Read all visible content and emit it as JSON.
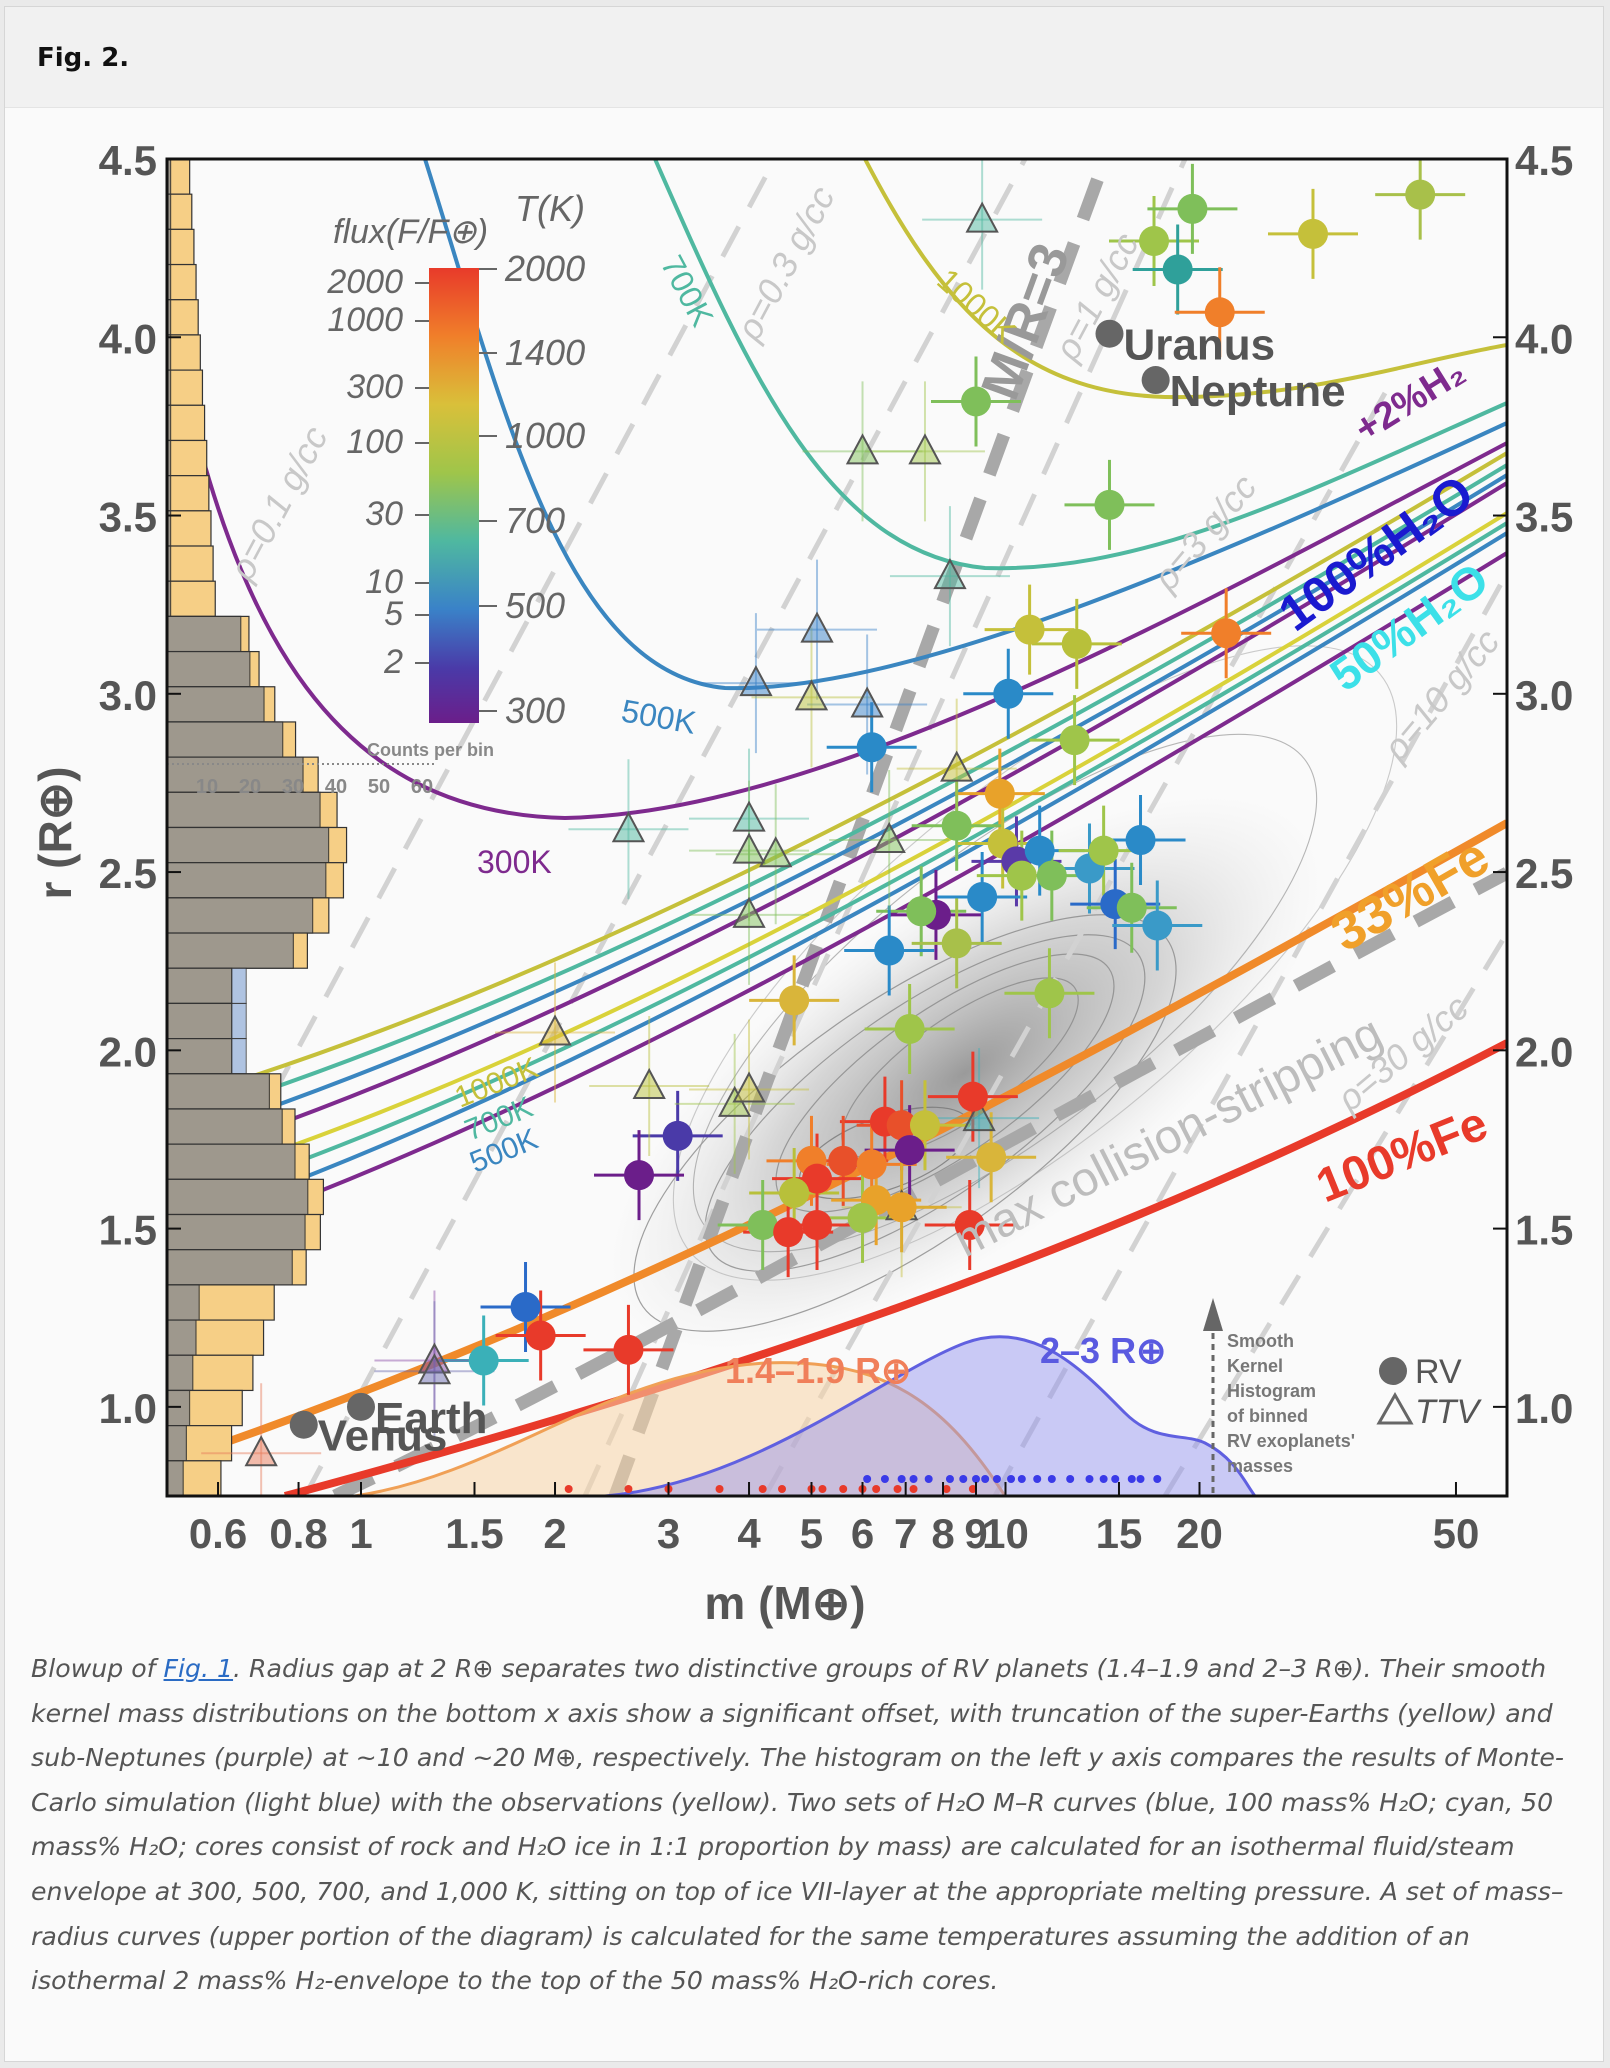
{
  "figure": {
    "label": "Fig. 2."
  },
  "caption": {
    "prefix": "Blowup of ",
    "link": "Fig. 1",
    "text": ". Radius gap at 2 R⊕ separates two distinctive groups of RV planets (1.4–1.9 and 2–3 R⊕). Their smooth kernel mass distributions on the bottom x axis show a significant offset, with truncation of the super-Earths (yellow) and sub-Neptunes (purple) at ~10 and ~20 M⊕, respectively. The histogram on the left y axis compares the results of Monte-Carlo simulation (light blue) with the observations (yellow). Two sets of H₂O M–R curves (blue, 100 mass% H₂O; cyan, 50 mass% H₂O; cores consist of rock and H₂O ice in 1:1 proportion by mass) are calculated for an isothermal fluid/steam envelope at 300, 500, 700, and 1,000 K, sitting on top of ice VII-layer at the appropriate melting pressure. A set of mass–radius curves (upper portion of the diagram) is calculated for the same temperatures assuming the addition of an isothermal 2 mass% H₂-envelope to the top of the 50 mass% H₂O-rich cores."
  },
  "chart_data": {
    "type": "scatter",
    "xlabel": "m (M⊕)",
    "ylabel": "r (R⊕)",
    "x_scale": "log",
    "xlim": [
      0.5,
      60
    ],
    "ylim": [
      0.75,
      4.5
    ],
    "x_ticks": [
      "0.6",
      "0.8",
      "1",
      "1.5",
      "2",
      "3",
      "4",
      "5",
      "6",
      "7",
      "8",
      "9",
      "10",
      "15",
      "20",
      "50"
    ],
    "y_ticks": [
      "1.0",
      "1.5",
      "2.0",
      "2.5",
      "3.0",
      "3.5",
      "4.0",
      "4.5"
    ],
    "colorbar": {
      "flux_title": "flux(F/F⊕)",
      "temp_title": "T(K)",
      "flux_ticks": [
        "2000",
        "1000",
        "300",
        "100",
        "30",
        "10",
        "5",
        "2"
      ],
      "temp_ticks": [
        "2000",
        "1400",
        "1000",
        "700",
        "500",
        "300"
      ],
      "colors": [
        "#e83a2a",
        "#f07f2a",
        "#d9b53a",
        "#9fc54a",
        "#4fb8a0",
        "#3a82c8",
        "#4a3aa8",
        "#6b1e8a"
      ]
    },
    "histogram": {
      "axis_title": "Counts per bin",
      "axis_ticks": [
        "10",
        "20",
        "30",
        "40",
        "50",
        "60"
      ],
      "observed_color": "#f6cf86",
      "simulated_color": "#9db6dc",
      "overlap_color": "#8f8f8f"
    },
    "curve_labels": {
      "h2_envelope": "+2%H₂",
      "water100": "100%H₂O",
      "water50": "50%H₂O",
      "iron33": "33%Fe",
      "iron100": "100%Fe",
      "collision": "max collision-stripping",
      "mr": "M/R=3",
      "t300": "300K",
      "t500": "500K",
      "t700": "700K",
      "t1000": "1000K",
      "t500_low": "500K",
      "t700_low": "700K",
      "t1000_low": "1000K"
    },
    "density_labels": [
      "ρ=0.1 g/cc",
      "ρ=0.3 g/cc",
      "ρ=1 g/cc",
      "ρ=3 g/cc",
      "ρ=10 g/cc",
      "ρ=30 g/cc"
    ],
    "named_planets": [
      {
        "name": "Uranus",
        "m": 14.5,
        "r": 4.01
      },
      {
        "name": "Neptune",
        "m": 17.1,
        "r": 3.88
      },
      {
        "name": "Earth",
        "m": 1.0,
        "r": 1.0
      },
      {
        "name": "Venus",
        "m": 0.815,
        "r": 0.95
      }
    ],
    "legend": {
      "rv": "RV",
      "ttv": "TTV"
    },
    "kde": {
      "note": "Smooth Kernel Histogram of binned RV exoplanets' masses",
      "group_small": "1.4–1.9 R⊕",
      "group_large": "2–3 R⊕"
    },
    "rv_points": [
      {
        "m": 17.0,
        "r": 4.27,
        "c": "#9fc54a"
      },
      {
        "m": 19.5,
        "r": 4.36,
        "c": "#7fbf5a"
      },
      {
        "m": 18.5,
        "r": 4.19,
        "c": "#2fa09a"
      },
      {
        "m": 21.5,
        "r": 4.07,
        "c": "#f07f2a"
      },
      {
        "m": 30.0,
        "r": 4.29,
        "c": "#c5c03a"
      },
      {
        "m": 44.0,
        "r": 4.4,
        "c": "#a8c04a"
      },
      {
        "m": 9.0,
        "r": 3.82,
        "c": "#7fbf5a"
      },
      {
        "m": 14.5,
        "r": 3.53,
        "c": "#7fbf5a"
      },
      {
        "m": 22.0,
        "r": 3.17,
        "c": "#f07f2a"
      },
      {
        "m": 10.9,
        "r": 3.18,
        "c": "#c5c03a"
      },
      {
        "m": 12.9,
        "r": 3.14,
        "c": "#b8c03a"
      },
      {
        "m": 10.1,
        "r": 3.0,
        "c": "#2a8ac8"
      },
      {
        "m": 6.2,
        "r": 2.85,
        "c": "#2a8ac8"
      },
      {
        "m": 12.8,
        "r": 2.87,
        "c": "#9fc54a"
      },
      {
        "m": 9.8,
        "r": 2.72,
        "c": "#e8a22a"
      },
      {
        "m": 8.4,
        "r": 2.63,
        "c": "#7fbf5a"
      },
      {
        "m": 9.9,
        "r": 2.58,
        "c": "#c5c03a"
      },
      {
        "m": 10.4,
        "r": 2.53,
        "c": "#5a3aa8"
      },
      {
        "m": 11.3,
        "r": 2.56,
        "c": "#2a8ac8"
      },
      {
        "m": 9.2,
        "r": 2.43,
        "c": "#2a8ac8"
      },
      {
        "m": 10.6,
        "r": 2.49,
        "c": "#9fc54a"
      },
      {
        "m": 11.8,
        "r": 2.49,
        "c": "#7fbf5a"
      },
      {
        "m": 13.5,
        "r": 2.51,
        "c": "#3a9ac8"
      },
      {
        "m": 14.8,
        "r": 2.41,
        "c": "#2a6ac8"
      },
      {
        "m": 15.7,
        "r": 2.4,
        "c": "#7fbf5a"
      },
      {
        "m": 16.2,
        "r": 2.59,
        "c": "#2a8ac8"
      },
      {
        "m": 17.2,
        "r": 2.35,
        "c": "#3a9ac8"
      },
      {
        "m": 14.2,
        "r": 2.56,
        "c": "#9fc54a"
      },
      {
        "m": 7.8,
        "r": 2.38,
        "c": "#6b1e8a"
      },
      {
        "m": 7.4,
        "r": 2.39,
        "c": "#7fbf5a"
      },
      {
        "m": 8.4,
        "r": 2.3,
        "c": "#a8c04a"
      },
      {
        "m": 6.6,
        "r": 2.28,
        "c": "#2a8ac8"
      },
      {
        "m": 11.7,
        "r": 2.16,
        "c": "#9fc54a"
      },
      {
        "m": 4.7,
        "r": 2.14,
        "c": "#d9b53a"
      },
      {
        "m": 7.1,
        "r": 2.06,
        "c": "#9fc54a"
      },
      {
        "m": 8.9,
        "r": 1.87,
        "c": "#e83a2a"
      },
      {
        "m": 6.5,
        "r": 1.8,
        "c": "#e83a2a"
      },
      {
        "m": 6.9,
        "r": 1.79,
        "c": "#e8502a"
      },
      {
        "m": 7.5,
        "r": 1.79,
        "c": "#c5c03a"
      },
      {
        "m": 7.1,
        "r": 1.72,
        "c": "#6b1e8a"
      },
      {
        "m": 9.5,
        "r": 1.7,
        "c": "#d9b53a"
      },
      {
        "m": 3.1,
        "r": 1.76,
        "c": "#4a3aa8"
      },
      {
        "m": 2.7,
        "r": 1.65,
        "c": "#6b1e8a"
      },
      {
        "m": 5.0,
        "r": 1.69,
        "c": "#f07f2a"
      },
      {
        "m": 5.6,
        "r": 1.69,
        "c": "#e8502a"
      },
      {
        "m": 6.2,
        "r": 1.68,
        "c": "#f07f2a"
      },
      {
        "m": 5.1,
        "r": 1.64,
        "c": "#e83a2a"
      },
      {
        "m": 4.7,
        "r": 1.6,
        "c": "#b8c03a"
      },
      {
        "m": 6.3,
        "r": 1.58,
        "c": "#e8a22a"
      },
      {
        "m": 6.9,
        "r": 1.56,
        "c": "#e8a22a"
      },
      {
        "m": 4.2,
        "r": 1.51,
        "c": "#7fbf5a"
      },
      {
        "m": 4.6,
        "r": 1.49,
        "c": "#e83a2a"
      },
      {
        "m": 5.1,
        "r": 1.51,
        "c": "#e83a2a"
      },
      {
        "m": 6.0,
        "r": 1.53,
        "c": "#9fc54a"
      },
      {
        "m": 8.8,
        "r": 1.51,
        "c": "#e83a2a"
      },
      {
        "m": 1.8,
        "r": 1.28,
        "c": "#2a6ac8"
      },
      {
        "m": 1.9,
        "r": 1.2,
        "c": "#e83a2a"
      },
      {
        "m": 2.6,
        "r": 1.16,
        "c": "#e83a2a"
      },
      {
        "m": 1.55,
        "r": 1.13,
        "c": "#3ab0b8"
      }
    ],
    "ttv_points": [
      {
        "m": 9.2,
        "r": 4.33,
        "c": "#4fb8a0"
      },
      {
        "m": 6.0,
        "r": 3.68,
        "c": "#7fbf5a"
      },
      {
        "m": 7.5,
        "r": 3.68,
        "c": "#9fc54a"
      },
      {
        "m": 8.2,
        "r": 3.33,
        "c": "#4fb8a0"
      },
      {
        "m": 5.1,
        "r": 3.18,
        "c": "#3a82c8"
      },
      {
        "m": 4.1,
        "r": 3.03,
        "c": "#3a82c8"
      },
      {
        "m": 5.0,
        "r": 2.99,
        "c": "#b8c03a"
      },
      {
        "m": 6.1,
        "r": 2.97,
        "c": "#3a82c8"
      },
      {
        "m": 8.4,
        "r": 2.79,
        "c": "#c5c03a"
      },
      {
        "m": 2.6,
        "r": 2.62,
        "c": "#4fb8a0"
      },
      {
        "m": 4.0,
        "r": 2.65,
        "c": "#4fb8a0"
      },
      {
        "m": 4.0,
        "r": 2.56,
        "c": "#7fbf5a"
      },
      {
        "m": 4.4,
        "r": 2.55,
        "c": "#7fbf5a"
      },
      {
        "m": 6.6,
        "r": 2.59,
        "c": "#7fbf5a"
      },
      {
        "m": 4.0,
        "r": 2.38,
        "c": "#7fbf5a"
      },
      {
        "m": 2.0,
        "r": 2.05,
        "c": "#d9b53a"
      },
      {
        "m": 2.8,
        "r": 1.9,
        "c": "#b8c03a"
      },
      {
        "m": 3.8,
        "r": 1.85,
        "c": "#9fc54a"
      },
      {
        "m": 4.0,
        "r": 1.89,
        "c": "#c5c03a"
      },
      {
        "m": 9.1,
        "r": 1.81,
        "c": "#3ab0b8"
      },
      {
        "m": 6.9,
        "r": 1.56,
        "c": "#c5c03a"
      },
      {
        "m": 1.3,
        "r": 1.13,
        "c": "#8a4aa8"
      },
      {
        "m": 1.3,
        "r": 1.1,
        "c": "#6b6bb0"
      },
      {
        "m": 0.7,
        "r": 0.87,
        "c": "#e87a5a"
      }
    ]
  }
}
